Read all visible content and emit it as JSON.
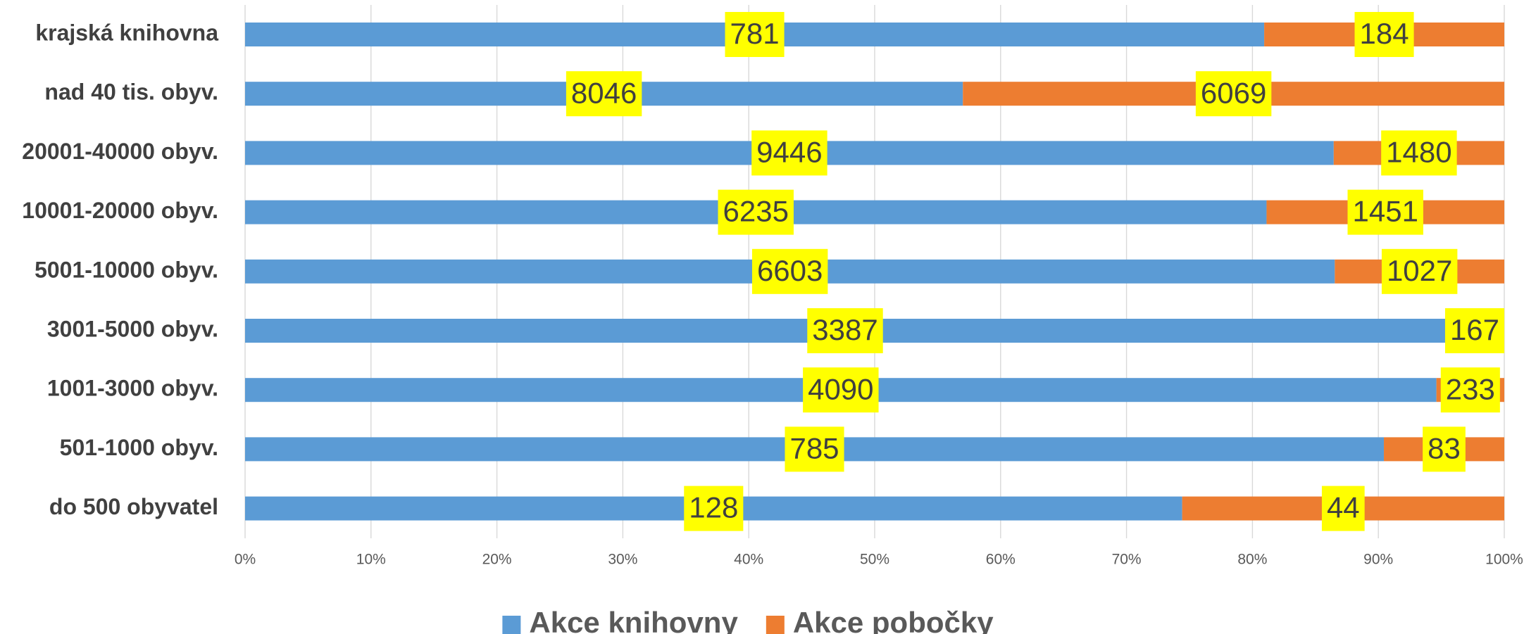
{
  "chart_data": {
    "type": "bar",
    "orientation": "horizontal",
    "stacking": "percent",
    "categories": [
      "krajská knihovna",
      "nad 40 tis. obyv.",
      "20001-40000 obyv.",
      "10001-20000 obyv.",
      "5001-10000 obyv.",
      "3001-5000 obyv.",
      "1001-3000 obyv.",
      "501-1000 obyv.",
      "do 500 obyvatel"
    ],
    "series": [
      {
        "name": "Akce knihovny",
        "color": "#5b9bd5",
        "values": [
          781,
          8046,
          9446,
          6235,
          6603,
          3387,
          4090,
          785,
          128
        ]
      },
      {
        "name": "Akce pobočky",
        "color": "#ed7d31",
        "values": [
          184,
          6069,
          1480,
          1451,
          1027,
          167,
          233,
          83,
          44
        ]
      }
    ],
    "xlim": [
      0,
      100
    ],
    "xticks": [
      {
        "value": 0,
        "label": "0%"
      },
      {
        "value": 10,
        "label": "10%"
      },
      {
        "value": 20,
        "label": "20%"
      },
      {
        "value": 30,
        "label": "30%"
      },
      {
        "value": 40,
        "label": "40%"
      },
      {
        "value": 50,
        "label": "50%"
      },
      {
        "value": 60,
        "label": "60%"
      },
      {
        "value": 70,
        "label": "70%"
      },
      {
        "value": 80,
        "label": "80%"
      },
      {
        "value": 90,
        "label": "90%"
      },
      {
        "value": 100,
        "label": "100%"
      }
    ],
    "grid": true,
    "legend": "bottom",
    "label_background": "#ffff00"
  }
}
